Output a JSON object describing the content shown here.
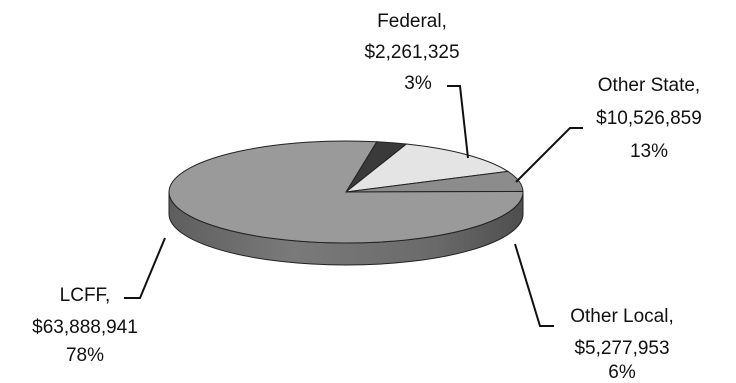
{
  "chart_data": {
    "type": "pie",
    "style": "3d",
    "slices": [
      {
        "name": "Federal",
        "value": 2261325,
        "value_label": "$2,261,325",
        "percent_label": "3%",
        "color": "#3a3a3a"
      },
      {
        "name": "Other State",
        "value": 10526859,
        "value_label": "$10,526,859",
        "percent_label": "13%",
        "color": "#e4e4e4"
      },
      {
        "name": "Other Local",
        "value": 5277953,
        "value_label": "$5,277,953",
        "percent_label": "6%",
        "color": "#8c8c8c"
      },
      {
        "name": "LCFF",
        "value": 63888941,
        "value_label": "$63,888,941",
        "percent_label": "78%",
        "color": "#9a9a9a"
      }
    ],
    "labels": {
      "federal": {
        "name": "Federal,",
        "value": "$2,261,325",
        "percent": "3%"
      },
      "other_state": {
        "name": "Other State,",
        "value": "$10,526,859",
        "percent": "13%"
      },
      "other_local": {
        "name": "Other Local,",
        "value": "$5,277,953",
        "percent": "6%"
      },
      "lcff": {
        "name": "LCFF,",
        "value": "$63,888,941",
        "percent": "78%"
      }
    }
  }
}
